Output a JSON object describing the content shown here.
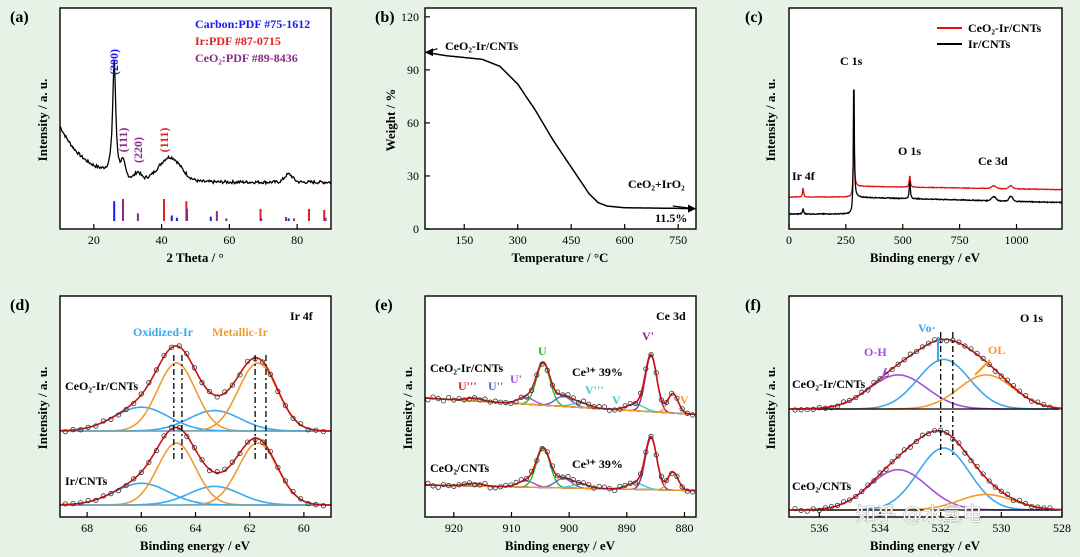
{
  "chart_data": [
    {
      "panel": "(a)",
      "type": "line",
      "xlabel": "2 Theta / °",
      "ylabel": "Intensity / a. u.",
      "xlim": [
        10,
        90
      ],
      "xticks": [
        20,
        40,
        60,
        80
      ],
      "legend": [
        {
          "text": "Carbon:PDF #75-1612",
          "color": "#1a1aee"
        },
        {
          "text": "Ir:PDF #87-0715",
          "color": "#e02020"
        },
        {
          "text": "CeO₂:PDF #89-8436",
          "color": "#8a2a8a"
        }
      ],
      "peaks": [
        {
          "label": "(200)",
          "x": 26.0,
          "color": "#1a1aee"
        },
        {
          "label": "(111)",
          "x": 28.6,
          "color": "#8a2a8a"
        },
        {
          "label": "(220)",
          "x": 33.0,
          "color": "#8a2a8a"
        },
        {
          "label": "(111)",
          "x": 40.7,
          "color": "#e02020"
        }
      ],
      "ref_lines": {
        "carbon": {
          "color": "#1a1aee",
          "x": [
            26.0,
            43.0,
            44.5,
            54.5,
            77.5
          ],
          "h": [
            0.9,
            0.25,
            0.15,
            0.2,
            0.12
          ]
        },
        "ir": {
          "color": "#e02020",
          "x": [
            40.7,
            47.3,
            69.2,
            83.5,
            88.0
          ],
          "h": [
            1.0,
            0.9,
            0.55,
            0.55,
            0.5
          ]
        },
        "ceo2": {
          "color": "#8a2a8a",
          "x": [
            28.6,
            33.0,
            47.5,
            56.3,
            59.1,
            69.4,
            76.7,
            79.1,
            88.4
          ],
          "h": [
            1.0,
            0.35,
            0.55,
            0.45,
            0.12,
            0.12,
            0.18,
            0.12,
            0.15
          ]
        }
      }
    },
    {
      "panel": "(b)",
      "type": "line",
      "xlabel": "Temperature / °C",
      "ylabel": "Weight / %",
      "xlim": [
        40,
        800
      ],
      "ylim": [
        0,
        125
      ],
      "xticks": [
        150,
        300,
        450,
        600,
        750
      ],
      "yticks": [
        0,
        30,
        60,
        90,
        120
      ],
      "series": [
        {
          "name": "CeO₂-Ir/CNTs",
          "x": [
            40,
            100,
            200,
            250,
            300,
            350,
            400,
            450,
            500,
            525,
            550,
            600,
            700,
            800
          ],
          "y": [
            100,
            98,
            96,
            92,
            82,
            67,
            50,
            35,
            20,
            15,
            13,
            12,
            11.8,
            11.5
          ]
        }
      ],
      "annotations": [
        "CeO₂-Ir/CNTs",
        "CeO₂+IrO₂",
        "11.5%"
      ]
    },
    {
      "panel": "(c)",
      "type": "line",
      "xlabel": "Binding energy / eV",
      "ylabel": "Intensity / a. u.",
      "xlim": [
        0,
        1200
      ],
      "xticks": [
        0,
        250,
        500,
        750,
        1000
      ],
      "series": [
        {
          "name": "CeO₂-Ir/CNTs",
          "color": "#e01010"
        },
        {
          "name": "Ir/CNTs",
          "color": "#000000"
        }
      ],
      "annotations": [
        "C 1s",
        "O 1s",
        "Ce 3d",
        "Ir 4f"
      ]
    },
    {
      "panel": "(d)",
      "type": "line",
      "xlabel": "Binding energy / eV",
      "ylabel": "Intensity / a. u.",
      "xlim": [
        69,
        59
      ],
      "xticks": [
        68,
        66,
        64,
        62,
        60
      ],
      "title": "Ir 4f",
      "samples": [
        "CeO₂-Ir/CNTs",
        "Ir/CNTs"
      ],
      "components": [
        {
          "name": "Oxidized-Ir",
          "color": "#3aa8ee",
          "centers": [
            66.0,
            63.3
          ]
        },
        {
          "name": "Metallic-Ir",
          "color": "#f39a2c",
          "centers": [
            64.7,
            61.7
          ]
        }
      ]
    },
    {
      "panel": "(e)",
      "type": "line",
      "xlabel": "Binding energy / eV",
      "ylabel": "Intensity / a. u.",
      "xlim": [
        925,
        878
      ],
      "xticks": [
        920,
        910,
        900,
        890,
        880
      ],
      "title": "Ce 3d",
      "samples": [
        "CeO₂-Ir/CNTs",
        "CeO₂/CNTs"
      ],
      "ce3_fraction": [
        "Ce³⁺ 39%",
        "Ce³⁺ 39%"
      ],
      "labels": [
        "U'''",
        "U''",
        "U'",
        "U",
        "V'''",
        "V",
        "V'",
        "V"
      ]
    },
    {
      "panel": "(f)",
      "type": "line",
      "xlabel": "Binding energy / eV",
      "ylabel": "Intensity / a. u.",
      "xlim": [
        537,
        528
      ],
      "xticks": [
        536,
        534,
        532,
        530,
        528
      ],
      "title": "O 1s",
      "samples": [
        "CeO₂-Ir/CNTs",
        "CeO₂/CNTs"
      ],
      "components": [
        {
          "name": "O-H",
          "color": "#a050e0",
          "center": 533.5
        },
        {
          "name": "Vo·",
          "color": "#3aa8ee",
          "center": 532.0
        },
        {
          "name": "OL",
          "color": "#f39a2c",
          "center": 530.6
        }
      ]
    }
  ],
  "labels": {
    "panel_a": "(a)",
    "panel_b": "(b)",
    "panel_c": "(c)",
    "panel_d": "(d)",
    "panel_e": "(e)",
    "panel_f": "(f)",
    "a_xlabel": "2 Theta / °",
    "b_xlabel": "Temperature / °C",
    "c_xlabel": "Binding energy / eV",
    "d_xlabel": "Binding energy / eV",
    "e_xlabel": "Binding energy / eV",
    "f_xlabel": "Binding energy / eV",
    "intensity": "Intensity / a. u.",
    "weight": "Weight / %",
    "a_leg1": "Carbon:PDF #75-1612",
    "a_leg2": "Ir:PDF #87-0715",
    "a_leg3": "CeO₂:PDF #89-8436",
    "a_p200": "(200)",
    "a_p111c": "(111)",
    "a_p220": "(220)",
    "a_p111i": "(111)",
    "b_ann1": "CeO₂-Ir/CNTs",
    "b_ann2": "CeO₂+IrO₂",
    "b_ann3": "11.5%",
    "c_leg1": "CeO₂-Ir/CNTs",
    "c_leg2": "Ir/CNTs",
    "c_C1s": "C 1s",
    "c_O1s": "O 1s",
    "c_Ce3d": "Ce 3d",
    "c_Ir4f": "Ir 4f",
    "d_title": "Ir 4f",
    "d_ox": "Oxidized-Ir",
    "d_met": "Metallic-Ir",
    "d_s1": "CeO₂-Ir/CNTs",
    "d_s2": "Ir/CNTs",
    "e_title": "Ce 3d",
    "e_s1": "CeO₂-Ir/CNTs",
    "e_s2": "CeO₂/CNTs",
    "e_ce1": "Ce³⁺ 39%",
    "e_ce2": "Ce³⁺ 39%",
    "e_U": "U",
    "e_U1": "U'",
    "e_U2": "U''",
    "e_U3": "U'''",
    "e_V1": "V'",
    "e_V3": "V'''",
    "e_V": "V",
    "e_Vb": "V",
    "f_title": "O 1s",
    "f_OH": "O-H",
    "f_Vo": "Vo·",
    "f_OL": "OL",
    "f_s1": "CeO₂-Ir/CNTs",
    "f_s2": "CeO₂/CNTs",
    "watermark": "知乎 @水氢电"
  }
}
